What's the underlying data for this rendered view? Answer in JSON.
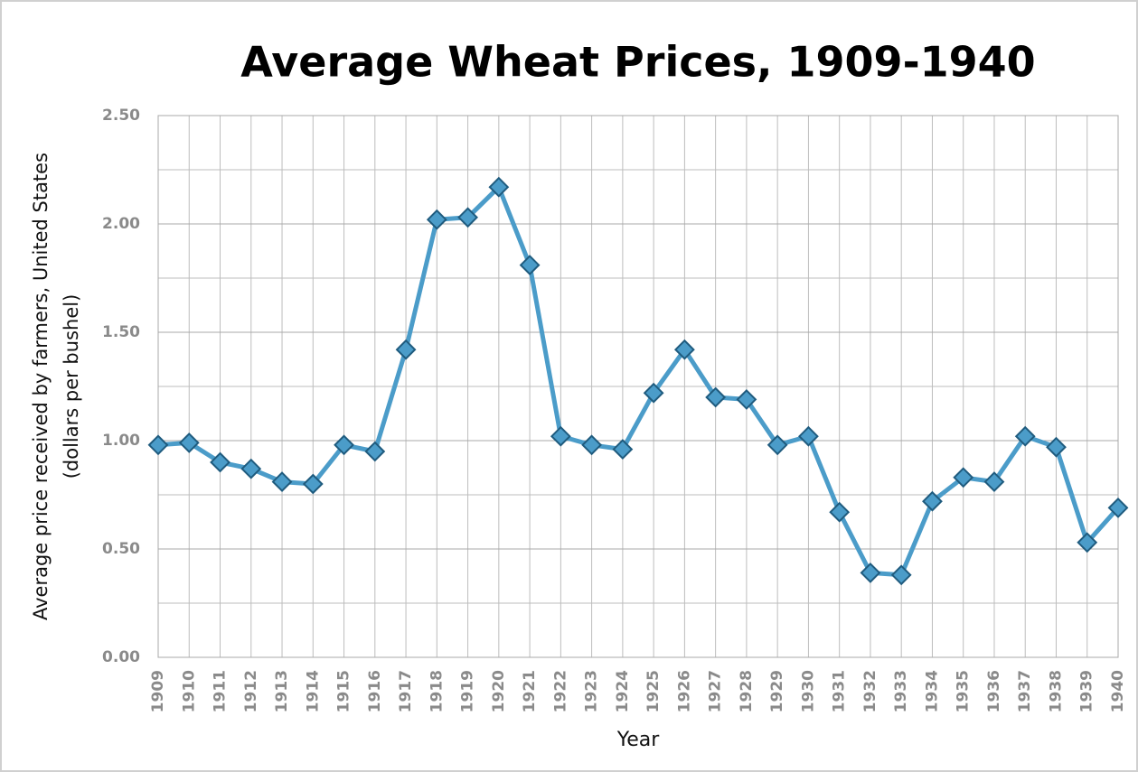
{
  "chart_data": {
    "type": "line",
    "title": "Average Wheat Prices, 1909-1940",
    "ylabel": [
      "Average price received by farmers, United States",
      "(dollars per bushel)"
    ],
    "xlabel": "Year",
    "categories": [
      "1909",
      "1910",
      "1911",
      "1912",
      "1913",
      "1914",
      "1915",
      "1916",
      "1917",
      "1918",
      "1919",
      "1920",
      "1921",
      "1922",
      "1923",
      "1924",
      "1925",
      "1926",
      "1927",
      "1928",
      "1929",
      "1930",
      "1931",
      "1932",
      "1933",
      "1934",
      "1935",
      "1936",
      "1937",
      "1938",
      "1939",
      "1940"
    ],
    "series": [
      {
        "color": "#4b9cc9",
        "marker_edge": "#1f5b7e",
        "values": [
          0.98,
          0.99,
          0.9,
          0.87,
          0.81,
          0.8,
          0.98,
          0.95,
          1.42,
          2.02,
          2.03,
          2.17,
          1.81,
          1.02,
          0.98,
          0.96,
          1.22,
          1.42,
          1.2,
          1.19,
          0.98,
          1.02,
          0.67,
          0.39,
          0.38,
          0.72,
          0.83,
          0.81,
          1.02,
          0.97,
          0.53,
          0.69
        ]
      }
    ],
    "ylim": [
      0,
      2.5
    ],
    "yticks": [
      {
        "value": 0,
        "label": "0.00"
      },
      {
        "value": 0.5,
        "label": "0.50"
      },
      {
        "value": 1,
        "label": "1.00"
      },
      {
        "value": 1.5,
        "label": "1.50"
      },
      {
        "value": 2,
        "label": "2.00"
      },
      {
        "value": 2.5,
        "label": "2.50"
      }
    ],
    "minor_yticks": [
      0.25,
      0.75,
      1.25,
      1.75,
      2.25
    ],
    "grid": true
  }
}
